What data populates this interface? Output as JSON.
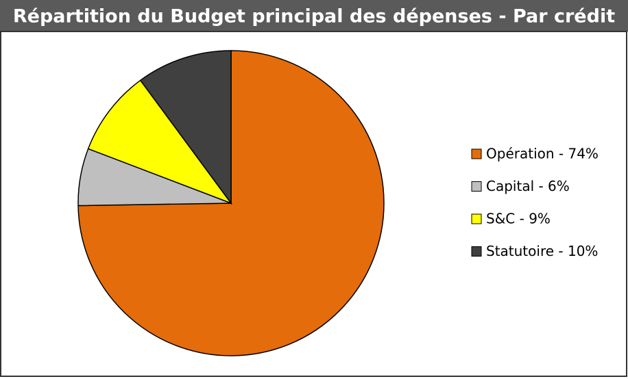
{
  "chart_data": {
    "type": "pie",
    "title": "Répartition du Budget principal des dépenses - Par crédit",
    "categories": [
      "Opération - 74%",
      "Capital - 6%",
      "S&C - 9%",
      "Statutoire - 10%"
    ],
    "values": [
      74,
      6,
      9,
      10
    ],
    "colors": [
      "#e46c0a",
      "#bfbfbf",
      "#ffff00",
      "#404040"
    ],
    "legend": "right"
  }
}
